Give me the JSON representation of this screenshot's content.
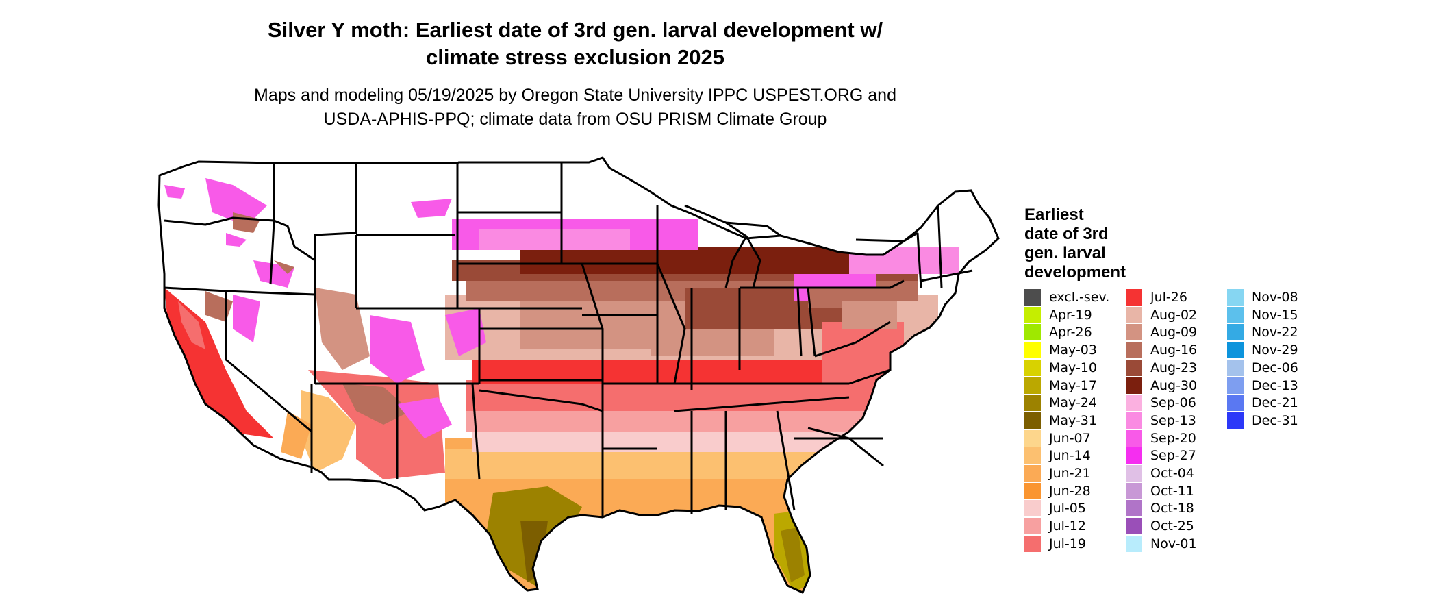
{
  "title": "Silver Y moth: Earliest date of 3rd gen. larval development w/\nclimate stress exclusion 2025",
  "subtitle": "Maps and modeling 05/19/2025 by Oregon State University IPPC USPEST.ORG and\nUSDA-APHIS-PPQ; climate data from OSU PRISM Climate Group",
  "legend": {
    "title": "Earliest\ndate of 3rd\ngen. larval\ndevelopment",
    "entries": [
      {
        "label": "excl.-sev.",
        "color": "#4d4d4d"
      },
      {
        "label": "Apr-19",
        "color": "#c5ee00"
      },
      {
        "label": "Apr-26",
        "color": "#9fe800"
      },
      {
        "label": "May-03",
        "color": "#ffff00"
      },
      {
        "label": "May-10",
        "color": "#d8d200"
      },
      {
        "label": "May-17",
        "color": "#bba800"
      },
      {
        "label": "May-24",
        "color": "#9c8200"
      },
      {
        "label": "May-31",
        "color": "#7c5e00"
      },
      {
        "label": "Jun-07",
        "color": "#fdd68c"
      },
      {
        "label": "Jun-14",
        "color": "#fcc070"
      },
      {
        "label": "Jun-21",
        "color": "#fbaa55"
      },
      {
        "label": "Jun-28",
        "color": "#fa9530"
      },
      {
        "label": "Jul-05",
        "color": "#f9cccc"
      },
      {
        "label": "Jul-12",
        "color": "#f7a0a0"
      },
      {
        "label": "Jul-19",
        "color": "#f56e6e"
      },
      {
        "label": "Jul-26",
        "color": "#f53333"
      },
      {
        "label": "Aug-02",
        "color": "#e8b5a7"
      },
      {
        "label": "Aug-09",
        "color": "#d39382"
      },
      {
        "label": "Aug-16",
        "color": "#b86e5c"
      },
      {
        "label": "Aug-23",
        "color": "#9a4a37"
      },
      {
        "label": "Aug-30",
        "color": "#7b1f0e"
      },
      {
        "label": "Sep-06",
        "color": "#fbb0e0"
      },
      {
        "label": "Sep-13",
        "color": "#fa8ae2"
      },
      {
        "label": "Sep-20",
        "color": "#f85ae8"
      },
      {
        "label": "Sep-27",
        "color": "#f52ef0"
      },
      {
        "label": "Oct-04",
        "color": "#e0c0e6"
      },
      {
        "label": "Oct-11",
        "color": "#c898d6"
      },
      {
        "label": "Oct-18",
        "color": "#b074c8"
      },
      {
        "label": "Oct-25",
        "color": "#9a4fb8"
      },
      {
        "label": "Nov-01",
        "color": "#b8ecfc"
      },
      {
        "label": "Nov-08",
        "color": "#86d6f2"
      },
      {
        "label": "Nov-15",
        "color": "#5cc0ec"
      },
      {
        "label": "Nov-22",
        "color": "#34aae4"
      },
      {
        "label": "Nov-29",
        "color": "#0d94dc"
      },
      {
        "label": "Dec-06",
        "color": "#a4c2ec"
      },
      {
        "label": "Dec-13",
        "color": "#7e9ef0"
      },
      {
        "label": "Dec-21",
        "color": "#5a78f2"
      },
      {
        "label": "Dec-31",
        "color": "#2c38f8"
      }
    ]
  }
}
